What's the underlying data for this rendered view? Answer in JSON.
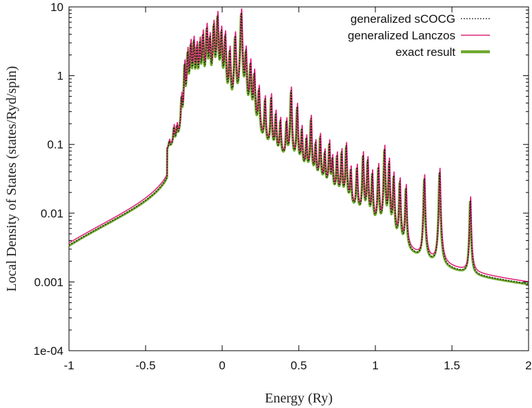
{
  "chart_data": {
    "type": "line",
    "title": "",
    "xlabel": "Energy (Ry)",
    "ylabel": "Local Density of States (states/Ryd/spin)",
    "xlim": [
      -1,
      2
    ],
    "ylim": [
      0.0001,
      10
    ],
    "yscale": "log",
    "x_ticks": [
      -1,
      -0.5,
      0,
      0.5,
      1,
      1.5,
      2
    ],
    "x_tick_labels": [
      "-1",
      "-0.5",
      "0",
      "0.5",
      "1",
      "1.5",
      "2"
    ],
    "y_ticks": [
      0.0001,
      0.001,
      0.01,
      0.1,
      1,
      10
    ],
    "y_tick_labels": [
      "1e-04",
      "0.001",
      "0.01",
      "0.1",
      "1",
      "10"
    ],
    "legend_position": "top-right",
    "series": [
      {
        "name": "generalized sCOCG",
        "color": "#111111",
        "style": "dotted"
      },
      {
        "name": "generalized Lanczos",
        "color": "#e0267a",
        "style": "solid"
      },
      {
        "name": "exact result",
        "color": "#6fa82f",
        "style": "solid-thick"
      }
    ],
    "background": {
      "base": 0.0017,
      "power": 3.4,
      "x0": -1,
      "edge": -0.36
    },
    "peaks": [
      {
        "e": -0.345,
        "a": 0.02,
        "w": 0.004
      },
      {
        "e": -0.315,
        "a": 0.07,
        "w": 0.004
      },
      {
        "e": -0.295,
        "a": 0.06,
        "w": 0.004
      },
      {
        "e": -0.265,
        "a": 0.3,
        "w": 0.004
      },
      {
        "e": -0.245,
        "a": 1.2,
        "w": 0.004
      },
      {
        "e": -0.225,
        "a": 1.9,
        "w": 0.005
      },
      {
        "e": -0.205,
        "a": 2.5,
        "w": 0.005
      },
      {
        "e": -0.185,
        "a": 2.8,
        "w": 0.005
      },
      {
        "e": -0.165,
        "a": 2.2,
        "w": 0.005
      },
      {
        "e": -0.145,
        "a": 2.6,
        "w": 0.005
      },
      {
        "e": -0.125,
        "a": 3.5,
        "w": 0.005
      },
      {
        "e": -0.1,
        "a": 4.5,
        "w": 0.005
      },
      {
        "e": -0.08,
        "a": 3.0,
        "w": 0.005
      },
      {
        "e": -0.055,
        "a": 5.0,
        "w": 0.005
      },
      {
        "e": -0.03,
        "a": 7.0,
        "w": 0.005
      },
      {
        "e": -0.005,
        "a": 4.0,
        "w": 0.005
      },
      {
        "e": 0.02,
        "a": 3.5,
        "w": 0.005
      },
      {
        "e": 0.05,
        "a": 2.0,
        "w": 0.005
      },
      {
        "e": 0.085,
        "a": 3.5,
        "w": 0.005
      },
      {
        "e": 0.125,
        "a": 8.0,
        "w": 0.005
      },
      {
        "e": 0.155,
        "a": 2.0,
        "w": 0.005
      },
      {
        "e": 0.185,
        "a": 1.3,
        "w": 0.005
      },
      {
        "e": 0.21,
        "a": 0.9,
        "w": 0.005
      },
      {
        "e": 0.24,
        "a": 0.5,
        "w": 0.005
      },
      {
        "e": 0.28,
        "a": 0.35,
        "w": 0.004
      },
      {
        "e": 0.32,
        "a": 0.4,
        "w": 0.004
      },
      {
        "e": 0.35,
        "a": 0.2,
        "w": 0.004
      },
      {
        "e": 0.38,
        "a": 0.15,
        "w": 0.004
      },
      {
        "e": 0.42,
        "a": 0.15,
        "w": 0.004
      },
      {
        "e": 0.45,
        "a": 0.55,
        "w": 0.004
      },
      {
        "e": 0.49,
        "a": 0.3,
        "w": 0.004
      },
      {
        "e": 0.52,
        "a": 0.12,
        "w": 0.004
      },
      {
        "e": 0.55,
        "a": 0.08,
        "w": 0.004
      },
      {
        "e": 0.58,
        "a": 0.2,
        "w": 0.004
      },
      {
        "e": 0.61,
        "a": 0.07,
        "w": 0.004
      },
      {
        "e": 0.64,
        "a": 0.1,
        "w": 0.004
      },
      {
        "e": 0.67,
        "a": 0.05,
        "w": 0.004
      },
      {
        "e": 0.7,
        "a": 0.08,
        "w": 0.004
      },
      {
        "e": 0.72,
        "a": 0.04,
        "w": 0.004
      },
      {
        "e": 0.75,
        "a": 0.05,
        "w": 0.004
      },
      {
        "e": 0.78,
        "a": 0.06,
        "w": 0.004
      },
      {
        "e": 0.81,
        "a": 0.08,
        "w": 0.004
      },
      {
        "e": 0.84,
        "a": 0.03,
        "w": 0.004
      },
      {
        "e": 0.88,
        "a": 0.035,
        "w": 0.004
      },
      {
        "e": 0.92,
        "a": 0.06,
        "w": 0.004
      },
      {
        "e": 0.95,
        "a": 0.05,
        "w": 0.004
      },
      {
        "e": 0.98,
        "a": 0.03,
        "w": 0.004
      },
      {
        "e": 1.02,
        "a": 0.04,
        "w": 0.004
      },
      {
        "e": 1.06,
        "a": 0.08,
        "w": 0.004
      },
      {
        "e": 1.09,
        "a": 0.05,
        "w": 0.004
      },
      {
        "e": 1.12,
        "a": 0.03,
        "w": 0.004
      },
      {
        "e": 1.16,
        "a": 0.025,
        "w": 0.004
      },
      {
        "e": 1.2,
        "a": 0.02,
        "w": 0.004
      },
      {
        "e": 1.32,
        "a": 0.03,
        "w": 0.004
      },
      {
        "e": 1.42,
        "a": 0.038,
        "w": 0.004
      },
      {
        "e": 1.62,
        "a": 0.014,
        "w": 0.004
      }
    ]
  }
}
